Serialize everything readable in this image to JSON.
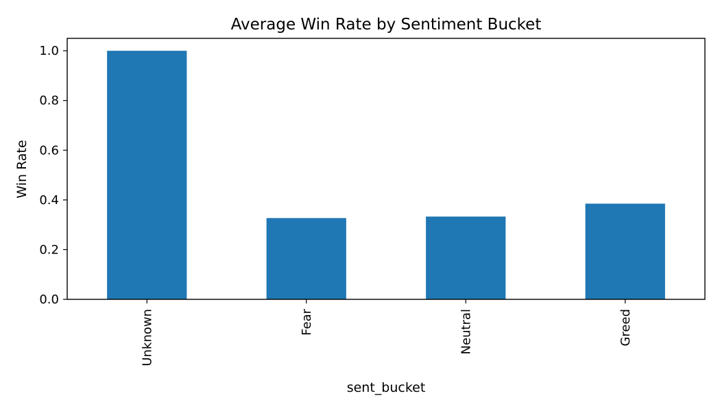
{
  "chart_data": {
    "type": "bar",
    "title": "Average Win Rate by Sentiment Bucket",
    "xlabel": "sent_bucket",
    "ylabel": "Win Rate",
    "categories": [
      "Unknown",
      "Fear",
      "Neutral",
      "Greed"
    ],
    "values": [
      1.0,
      0.327,
      0.333,
      0.385
    ],
    "ylim": [
      0,
      1.05
    ],
    "yticks": [
      0.0,
      0.2,
      0.4,
      0.6,
      0.8,
      1.0
    ],
    "ytick_labels": [
      "0.0",
      "0.2",
      "0.4",
      "0.6",
      "0.8",
      "1.0"
    ],
    "bar_color": "#1f77b4",
    "grid": false,
    "legend": "none"
  }
}
